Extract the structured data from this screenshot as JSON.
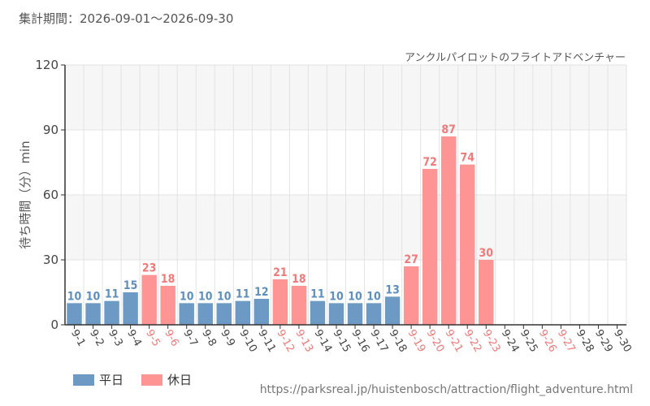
{
  "header": {
    "period_label": "集計期間：",
    "period_start": "2026-09-01",
    "period_separator": "～",
    "period_end": "2026-09-30"
  },
  "colors": {
    "weekday": "#6c9ac4",
    "weekday_label": "#5f8fbd",
    "holiday": "#ff9494",
    "holiday_label": "#f07a7a",
    "grid": "#e3e3e3",
    "band": "#f6f6f6"
  },
  "legend": {
    "weekday": "平日",
    "holiday": "休日"
  },
  "source_url": "https://parksreal.jp/huistenbosch/attraction/flight_adventure.html",
  "chart_data": {
    "type": "bar",
    "title": "アンクルパイロットのフライトアドベンチャー",
    "ylabel": "待ち時間（分）min",
    "xlabel": "",
    "ylim": [
      0,
      120
    ],
    "yticks": [
      0,
      30,
      60,
      90,
      120
    ],
    "grid": true,
    "legend_position": "bottom-left",
    "categories": [
      "9-1",
      "9-2",
      "9-3",
      "9-4",
      "9-5",
      "9-6",
      "9-7",
      "9-8",
      "9-9",
      "9-10",
      "9-11",
      "9-12",
      "9-13",
      "9-14",
      "9-15",
      "9-16",
      "9-17",
      "9-18",
      "9-19",
      "9-20",
      "9-21",
      "9-22",
      "9-23",
      "9-24",
      "9-25",
      "9-26",
      "9-27",
      "9-28",
      "9-29",
      "9-30"
    ],
    "values": [
      10,
      10,
      11,
      15,
      23,
      18,
      10,
      10,
      10,
      11,
      12,
      21,
      18,
      11,
      10,
      10,
      10,
      13,
      27,
      72,
      87,
      74,
      30,
      null,
      null,
      null,
      null,
      null,
      null,
      null
    ],
    "day_type": [
      "weekday",
      "weekday",
      "weekday",
      "weekday",
      "holiday",
      "holiday",
      "weekday",
      "weekday",
      "weekday",
      "weekday",
      "weekday",
      "holiday",
      "holiday",
      "weekday",
      "weekday",
      "weekday",
      "weekday",
      "weekday",
      "holiday",
      "holiday",
      "holiday",
      "holiday",
      "holiday",
      "weekday",
      "weekday",
      "holiday",
      "holiday",
      "weekday",
      "weekday",
      "weekday"
    ]
  }
}
